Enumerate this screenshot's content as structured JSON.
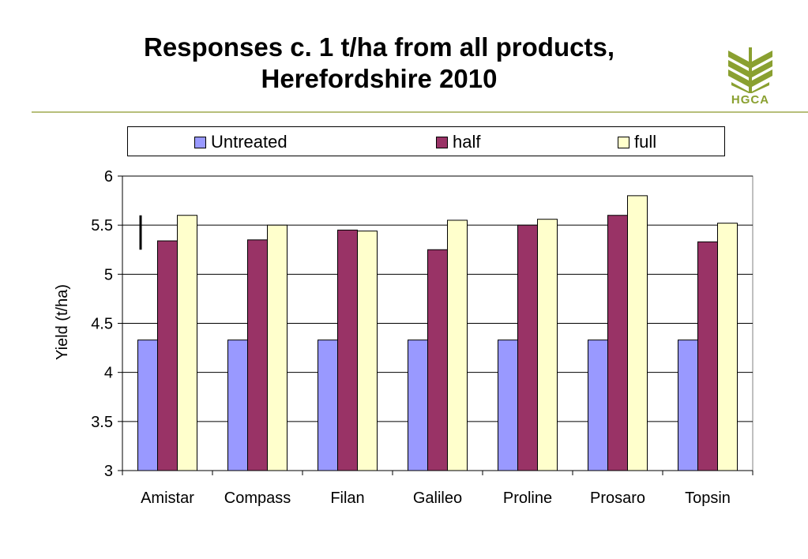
{
  "header": {
    "title_line1": "Responses c. 1 t/ha from all products,",
    "title_line2": "Herefordshire 2010",
    "logo_text": "HGCA"
  },
  "colors": {
    "Untreated": "#9999ff",
    "half": "#993366",
    "full": "#ffffcc",
    "rule": "#b7bf7a",
    "logo": "#8aa030"
  },
  "chart_data": {
    "type": "bar",
    "categories": [
      "Amistar",
      "Compass",
      "Filan",
      "Galileo",
      "Proline",
      "Prosaro",
      "Topsin"
    ],
    "series": [
      {
        "name": "Untreated",
        "values": [
          4.33,
          4.33,
          4.33,
          4.33,
          4.33,
          4.33,
          4.33
        ]
      },
      {
        "name": "half",
        "values": [
          5.34,
          5.35,
          5.45,
          5.25,
          5.5,
          5.6,
          5.33
        ]
      },
      {
        "name": "full",
        "values": [
          5.6,
          5.5,
          5.44,
          5.55,
          5.56,
          5.8,
          5.52
        ]
      }
    ],
    "ylabel": "Yield (t/ha)",
    "ylim": [
      3,
      6
    ],
    "yticks": [
      "3",
      "3.5",
      "4",
      "4.5",
      "5",
      "5.5",
      "6"
    ],
    "grid": true,
    "legend_position": "top",
    "error_bar": {
      "low": 5.25,
      "high": 5.6
    }
  }
}
